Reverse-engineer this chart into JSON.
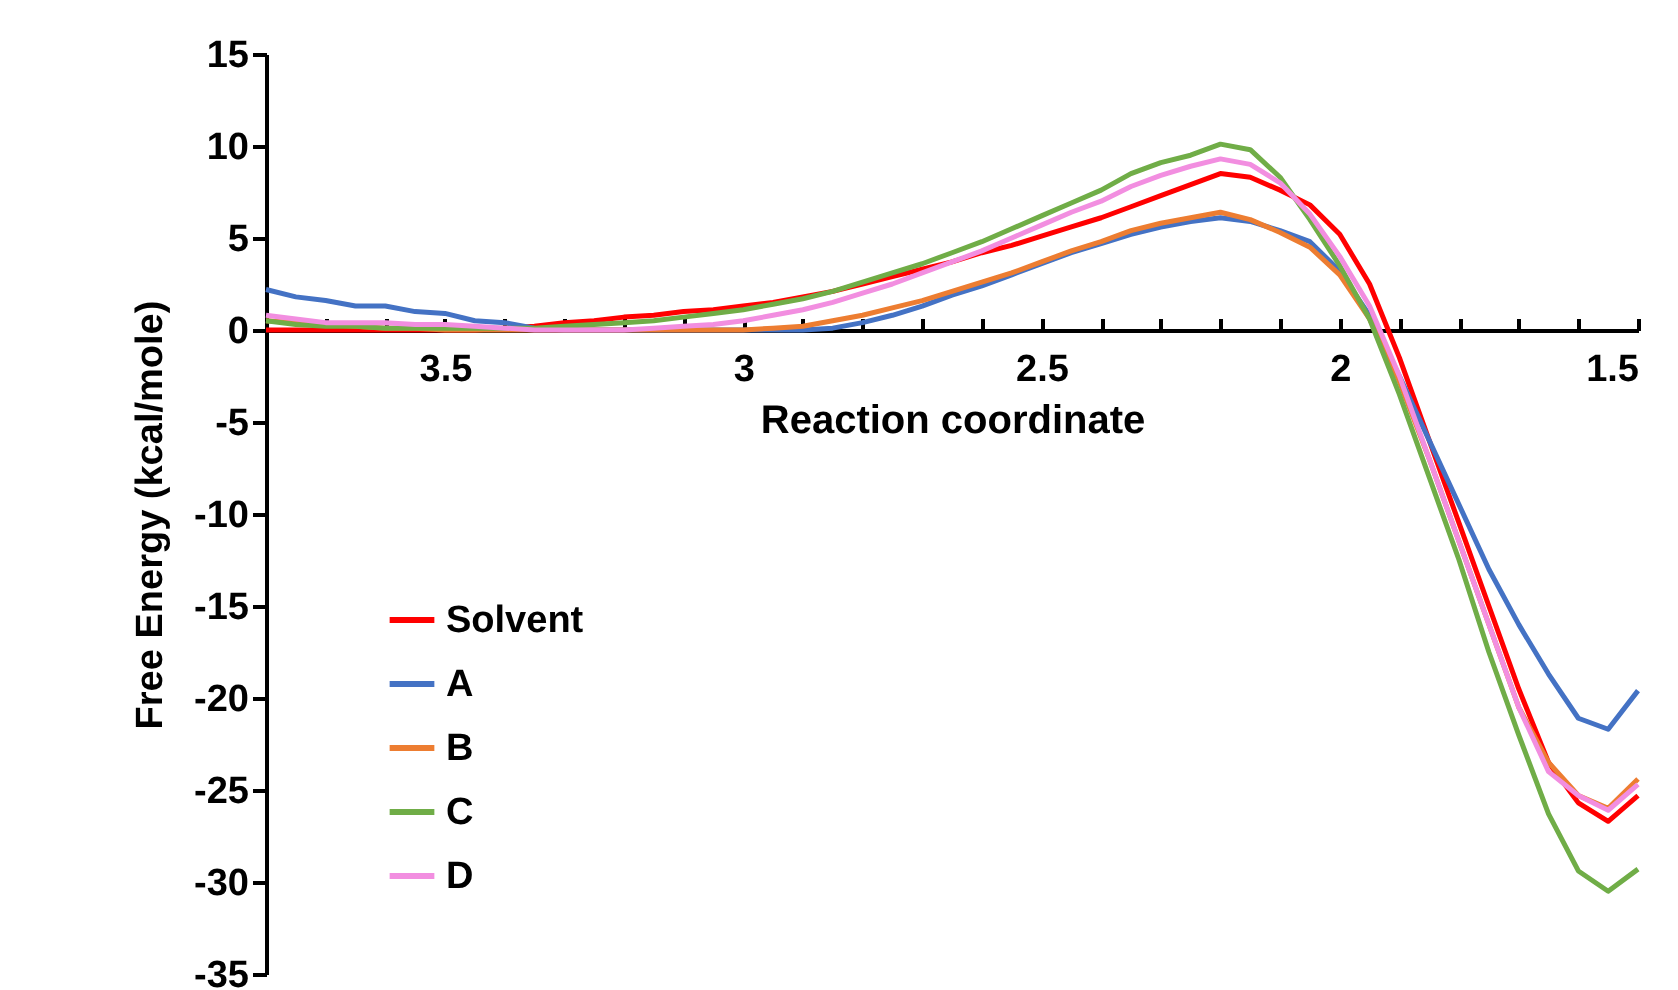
{
  "chart_data": {
    "type": "line",
    "xlabel": "Reaction coordinate",
    "ylabel": "Free Energy (kcal/mole)",
    "x": [
      3.8,
      3.75,
      3.7,
      3.65,
      3.6,
      3.55,
      3.5,
      3.45,
      3.4,
      3.35,
      3.3,
      3.25,
      3.2,
      3.15,
      3.1,
      3.05,
      3.0,
      2.95,
      2.9,
      2.85,
      2.8,
      2.75,
      2.7,
      2.65,
      2.6,
      2.55,
      2.5,
      2.45,
      2.4,
      2.35,
      2.3,
      2.25,
      2.2,
      2.15,
      2.1,
      2.05,
      2.0,
      1.95,
      1.9,
      1.85,
      1.8,
      1.75,
      1.7,
      1.65,
      1.6,
      1.55,
      1.5
    ],
    "series": [
      {
        "name": "Solvent",
        "color": "#ff0000",
        "values": [
          0,
          0,
          0,
          0,
          0,
          0,
          0,
          0,
          0.1,
          0.2,
          0.4,
          0.5,
          0.7,
          0.8,
          1.0,
          1.1,
          1.3,
          1.5,
          1.8,
          2.1,
          2.5,
          2.9,
          3.3,
          3.7,
          4.2,
          4.6,
          5.1,
          5.6,
          6.1,
          6.7,
          7.3,
          7.9,
          8.5,
          8.3,
          7.6,
          6.8,
          5.2,
          2.5,
          -1.5,
          -6,
          -10.5,
          -15,
          -19.5,
          -23.5,
          -25.7,
          -26.7,
          -25.3
        ]
      },
      {
        "name": "A",
        "color": "#4472c4",
        "values": [
          2.2,
          1.8,
          1.6,
          1.3,
          1.3,
          1.0,
          0.9,
          0.5,
          0.4,
          0.1,
          0,
          0,
          0,
          0,
          0,
          0,
          0,
          0,
          0,
          0.1,
          0.4,
          0.8,
          1.3,
          1.9,
          2.4,
          3.0,
          3.6,
          4.2,
          4.7,
          5.2,
          5.6,
          5.9,
          6.1,
          5.9,
          5.4,
          4.8,
          3.2,
          0.8,
          -2.5,
          -6,
          -9.5,
          -13,
          -16,
          -18.7,
          -21.1,
          -21.7,
          -19.6
        ]
      },
      {
        "name": "B",
        "color": "#ed7d31",
        "values": [
          0.5,
          0.4,
          0.3,
          0.2,
          0.1,
          0.1,
          0,
          0,
          0,
          0,
          0,
          0,
          0,
          0,
          0,
          0,
          0,
          0.1,
          0.2,
          0.5,
          0.8,
          1.2,
          1.6,
          2.1,
          2.6,
          3.1,
          3.7,
          4.3,
          4.8,
          5.4,
          5.8,
          6.1,
          6.4,
          6.0,
          5.3,
          4.5,
          3.0,
          0.6,
          -2.8,
          -7,
          -11.5,
          -16,
          -20.5,
          -23.5,
          -25.3,
          -26,
          -24.4
        ]
      },
      {
        "name": "C",
        "color": "#70ad47",
        "values": [
          0.5,
          0.3,
          0.2,
          0.2,
          0.1,
          0.1,
          0.1,
          0.1,
          0.1,
          0.1,
          0.2,
          0.3,
          0.4,
          0.5,
          0.7,
          0.9,
          1.1,
          1.4,
          1.7,
          2.1,
          2.6,
          3.1,
          3.6,
          4.2,
          4.8,
          5.5,
          6.2,
          6.9,
          7.6,
          8.5,
          9.1,
          9.5,
          10.1,
          9.8,
          8.3,
          6.0,
          3.5,
          0.6,
          -3.5,
          -8,
          -12.5,
          -17.5,
          -22,
          -26.3,
          -29.4,
          -30.5,
          -29.3
        ]
      },
      {
        "name": "D",
        "color": "#f28ee0",
        "values": [
          0.8,
          0.6,
          0.4,
          0.4,
          0.4,
          0.3,
          0.3,
          0.2,
          0.1,
          0,
          0,
          0,
          0,
          0.1,
          0.2,
          0.3,
          0.5,
          0.8,
          1.1,
          1.5,
          2.0,
          2.5,
          3.1,
          3.7,
          4.3,
          5.0,
          5.7,
          6.4,
          7.0,
          7.8,
          8.4,
          8.9,
          9.3,
          9.0,
          8.0,
          6.3,
          4.0,
          1.3,
          -2.5,
          -7,
          -11.5,
          -16,
          -20.5,
          -24,
          -25.3,
          -26.1,
          -24.7
        ]
      }
    ],
    "xlim": [
      3.8,
      1.5
    ],
    "xticks": [
      {
        "value": 3.7,
        "label": null
      },
      {
        "value": 3.6,
        "label": null
      },
      3.5,
      {
        "value": 3.4,
        "label": null
      },
      {
        "value": 3.3,
        "label": null
      },
      {
        "value": 3.2,
        "label": null
      },
      {
        "value": 3.1,
        "label": null
      },
      3,
      {
        "value": 2.9,
        "label": null
      },
      {
        "value": 2.8,
        "label": null
      },
      {
        "value": 2.7,
        "label": null
      },
      {
        "value": 2.6,
        "label": null
      },
      2.5,
      {
        "value": 2.4,
        "label": null
      },
      {
        "value": 2.3,
        "label": null
      },
      {
        "value": 2.2,
        "label": null
      },
      {
        "value": 2.1,
        "label": null
      },
      2,
      {
        "value": 1.9,
        "label": null
      },
      {
        "value": 1.8,
        "label": null
      },
      {
        "value": 1.7,
        "label": null
      },
      {
        "value": 1.6,
        "label": null
      },
      1.5
    ],
    "ylim": [
      -35,
      15
    ],
    "yticks": [
      -35,
      -30,
      -25,
      -20,
      -15,
      -10,
      -5,
      0,
      5,
      10,
      15
    ],
    "grid": false,
    "legend": "bottom left",
    "marker": "none",
    "line_style": "solid"
  }
}
